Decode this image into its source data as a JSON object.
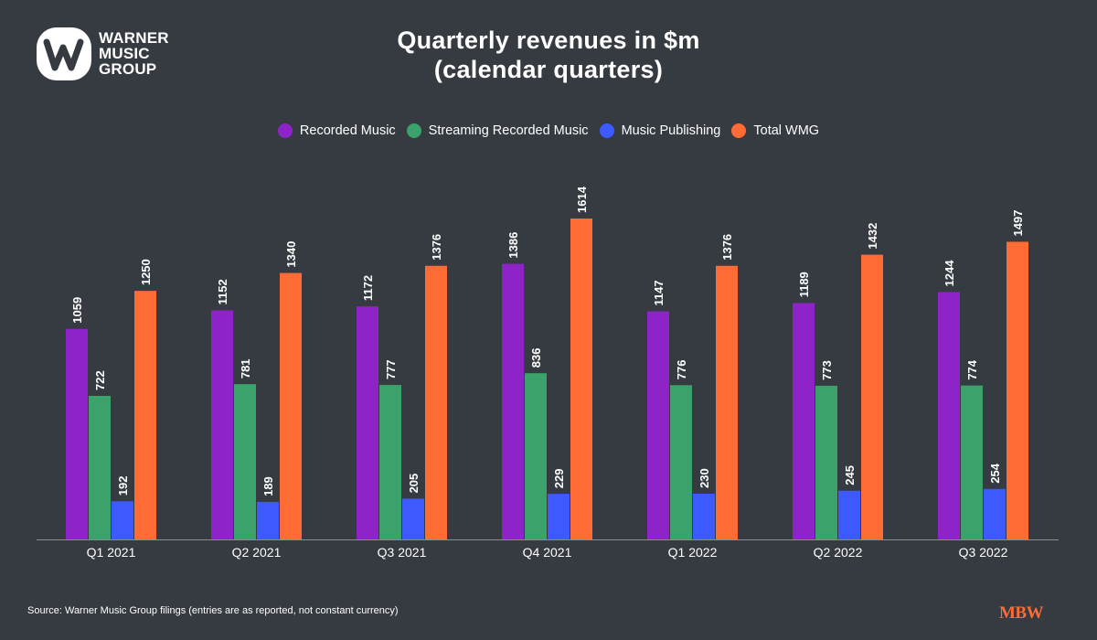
{
  "logo": {
    "line1": "WARNER",
    "line2": "MUSIC",
    "line3": "GROUP"
  },
  "brand_mark": "MBW",
  "source": "Source: Warner Music Group filings (entries are as reported, not constant currency)",
  "colors": {
    "background": "#363a41",
    "recorded": "#8e24c7",
    "streaming": "#3aa26a",
    "publishing": "#3d5afe",
    "total": "#ff6b35"
  },
  "chart_data": {
    "type": "bar",
    "title_line1": "Quarterly revenues in $m",
    "title_line2": "(calendar quarters)",
    "categories": [
      "Q1 2021",
      "Q2 2021",
      "Q3 2021",
      "Q4 2021",
      "Q1 2022",
      "Q2 2022",
      "Q3 2022"
    ],
    "series": [
      {
        "name": "Recorded Music",
        "color": "#8e24c7",
        "values": [
          1059,
          1152,
          1172,
          1386,
          1147,
          1189,
          1244
        ]
      },
      {
        "name": "Streaming Recorded Music",
        "color": "#3aa26a",
        "values": [
          722,
          781,
          777,
          836,
          776,
          773,
          774
        ]
      },
      {
        "name": "Music Publishing",
        "color": "#3d5afe",
        "values": [
          192,
          189,
          205,
          229,
          230,
          245,
          254
        ]
      },
      {
        "name": "Total WMG",
        "color": "#ff6b35",
        "values": [
          1250,
          1340,
          1376,
          1614,
          1376,
          1432,
          1497
        ]
      }
    ],
    "ylim": [
      0,
      1614
    ],
    "data_labels": "rotated, above bars",
    "legend_position": "top-center",
    "grid": false
  }
}
